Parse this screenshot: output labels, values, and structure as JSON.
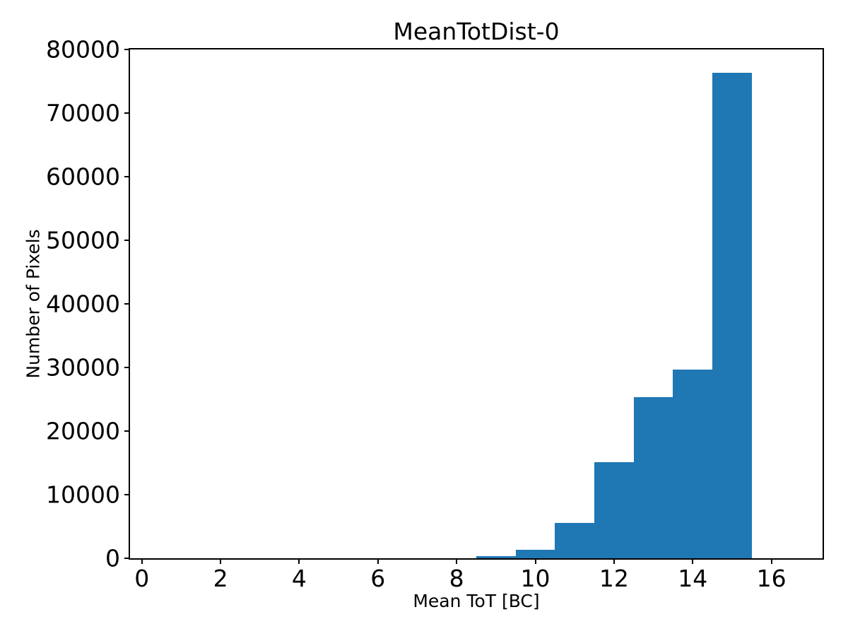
{
  "chart_data": {
    "type": "bar",
    "subtype": "histogram",
    "title": "MeanTotDist-0",
    "xlabel": "Mean ToT [BC]",
    "ylabel": "Number of Pixels",
    "bar_color": "#1f77b4",
    "bin_edges": [
      0.5,
      1.5,
      2.5,
      3.5,
      4.5,
      5.5,
      6.5,
      7.5,
      8.5,
      9.5,
      10.5,
      11.5,
      12.5,
      13.5,
      14.5,
      15.5,
      16.5
    ],
    "counts": [
      0,
      0,
      0,
      0,
      0,
      0,
      0,
      0,
      380,
      1300,
      5600,
      15100,
      25300,
      29700,
      76300,
      0
    ],
    "xlim": [
      -0.3,
      17.3
    ],
    "ylim": [
      0,
      80000
    ],
    "xticks": [
      0,
      2,
      4,
      6,
      8,
      10,
      12,
      14,
      16
    ],
    "xtick_labels": [
      "0",
      "2",
      "4",
      "6",
      "8",
      "10",
      "12",
      "14",
      "16"
    ],
    "yticks": [
      0,
      10000,
      20000,
      30000,
      40000,
      50000,
      60000,
      70000,
      80000
    ],
    "ytick_labels": [
      "0",
      "10000",
      "20000",
      "30000",
      "40000",
      "50000",
      "60000",
      "70000",
      "80000"
    ],
    "grid": false,
    "legend_position": "none"
  }
}
